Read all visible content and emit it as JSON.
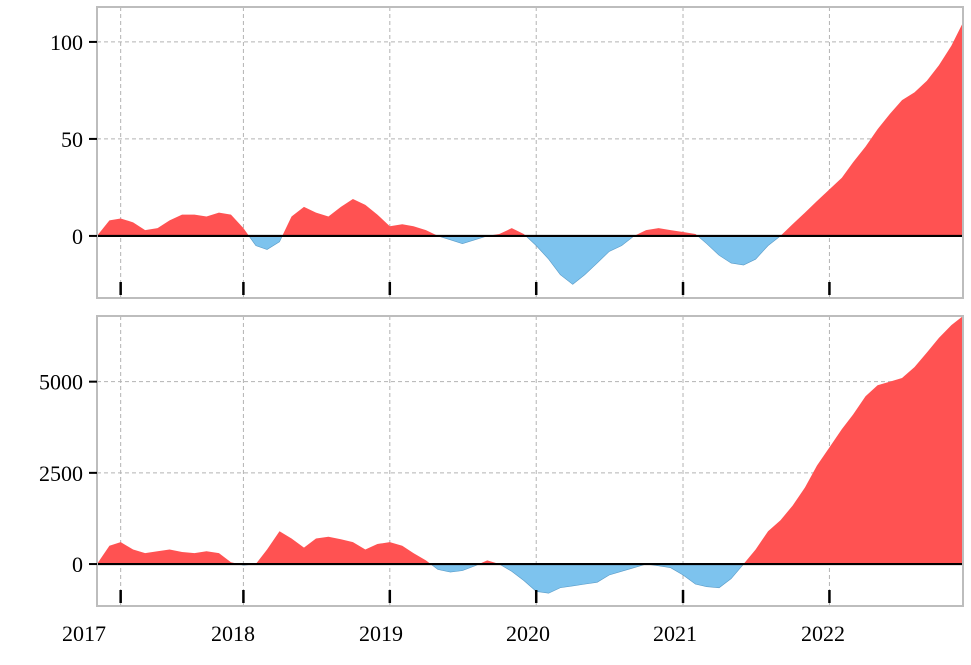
{
  "chart_data": [
    {
      "type": "area",
      "panel": "top",
      "title": "",
      "xlabel": "",
      "ylabel": "",
      "xlim": [
        "2017-01-01",
        "2022-11-30"
      ],
      "ylim": [
        -32,
        118
      ],
      "y_ticks": [
        0,
        50,
        100
      ],
      "y_tick_labels": [
        "0",
        "50",
        "100"
      ],
      "grid": true,
      "colors": {
        "positive": "#ff5252",
        "negative": "#7dc3ee",
        "zero_line": "#000000",
        "grid": "#b3b3b3",
        "frame": "#bdbdbd"
      },
      "x": [
        "2017-01-01",
        "2017-02-01",
        "2017-03-01",
        "2017-04-01",
        "2017-05-01",
        "2017-06-01",
        "2017-07-01",
        "2017-08-01",
        "2017-09-01",
        "2017-10-01",
        "2017-11-01",
        "2017-12-01",
        "2018-01-01",
        "2018-02-01",
        "2018-03-01",
        "2018-04-01",
        "2018-05-01",
        "2018-06-01",
        "2018-07-01",
        "2018-08-01",
        "2018-09-01",
        "2018-10-01",
        "2018-11-01",
        "2018-12-01",
        "2019-01-01",
        "2019-02-01",
        "2019-03-01",
        "2019-04-01",
        "2019-05-01",
        "2019-06-01",
        "2019-07-01",
        "2019-08-01",
        "2019-09-01",
        "2019-10-01",
        "2019-11-01",
        "2019-12-01",
        "2020-01-01",
        "2020-02-01",
        "2020-03-01",
        "2020-04-01",
        "2020-05-01",
        "2020-06-01",
        "2020-07-01",
        "2020-08-01",
        "2020-09-01",
        "2020-10-01",
        "2020-11-01",
        "2020-12-01",
        "2021-01-01",
        "2021-02-01",
        "2021-03-01",
        "2021-04-01",
        "2021-05-01",
        "2021-06-01",
        "2021-07-01",
        "2021-08-01",
        "2021-09-01",
        "2021-10-01",
        "2021-11-01",
        "2021-12-01",
        "2022-01-01",
        "2022-02-01",
        "2022-03-01",
        "2022-04-01",
        "2022-05-01",
        "2022-06-01",
        "2022-07-01",
        "2022-08-01",
        "2022-09-01",
        "2022-10-01",
        "2022-11-01",
        "2022-11-30"
      ],
      "values": [
        0,
        8,
        9,
        7,
        3,
        4,
        8,
        11,
        11,
        10,
        12,
        11,
        4,
        -5,
        -7,
        -3,
        10,
        15,
        12,
        10,
        15,
        19,
        16,
        11,
        5,
        6,
        5,
        3,
        0,
        -2,
        -4,
        -2,
        0,
        1,
        4,
        1,
        -5,
        -12,
        -20,
        -25,
        -20,
        -14,
        -8,
        -5,
        0,
        3,
        4,
        3,
        2,
        1,
        -4,
        -10,
        -14,
        -15,
        -12,
        -5,
        0,
        6,
        12,
        18,
        24,
        30,
        38,
        46,
        55,
        63,
        70,
        74,
        80,
        88,
        98,
        110
      ]
    },
    {
      "type": "area",
      "panel": "bottom",
      "title": "",
      "xlabel": "",
      "ylabel": "",
      "xlim": [
        "2017-01-01",
        "2022-11-30"
      ],
      "ylim": [
        -1150,
        6800
      ],
      "y_ticks": [
        0,
        2500,
        5000
      ],
      "y_tick_labels": [
        "0",
        "2500",
        "5000"
      ],
      "x_tick_labels": [
        "2017",
        "2018",
        "2019",
        "2020",
        "2021",
        "2022"
      ],
      "grid": true,
      "colors": {
        "positive": "#ff5252",
        "negative": "#7dc3ee",
        "zero_line": "#000000",
        "grid": "#b3b3b3",
        "frame": "#bdbdbd"
      },
      "x": [
        "2017-01-01",
        "2017-02-01",
        "2017-03-01",
        "2017-04-01",
        "2017-05-01",
        "2017-06-01",
        "2017-07-01",
        "2017-08-01",
        "2017-09-01",
        "2017-10-01",
        "2017-11-01",
        "2017-12-01",
        "2018-01-01",
        "2018-02-01",
        "2018-03-01",
        "2018-04-01",
        "2018-05-01",
        "2018-06-01",
        "2018-07-01",
        "2018-08-01",
        "2018-09-01",
        "2018-10-01",
        "2018-11-01",
        "2018-12-01",
        "2019-01-01",
        "2019-02-01",
        "2019-03-01",
        "2019-04-01",
        "2019-05-01",
        "2019-06-01",
        "2019-07-01",
        "2019-08-01",
        "2019-09-01",
        "2019-10-01",
        "2019-11-01",
        "2019-12-01",
        "2020-01-01",
        "2020-02-01",
        "2020-03-01",
        "2020-04-01",
        "2020-05-01",
        "2020-06-01",
        "2020-07-01",
        "2020-08-01",
        "2020-09-01",
        "2020-10-01",
        "2020-11-01",
        "2020-12-01",
        "2021-01-01",
        "2021-02-01",
        "2021-03-01",
        "2021-04-01",
        "2021-05-01",
        "2021-06-01",
        "2021-07-01",
        "2021-08-01",
        "2021-09-01",
        "2021-10-01",
        "2021-11-01",
        "2021-12-01",
        "2022-01-01",
        "2022-02-01",
        "2022-03-01",
        "2022-04-01",
        "2022-05-01",
        "2022-06-01",
        "2022-07-01",
        "2022-08-01",
        "2022-09-01",
        "2022-10-01",
        "2022-11-01",
        "2022-11-30"
      ],
      "values": [
        0,
        500,
        600,
        400,
        300,
        350,
        400,
        330,
        300,
        350,
        300,
        50,
        -30,
        0,
        400,
        900,
        700,
        450,
        700,
        750,
        680,
        600,
        400,
        550,
        600,
        500,
        300,
        100,
        -150,
        -220,
        -180,
        -50,
        100,
        0,
        -200,
        -450,
        -750,
        -800,
        -650,
        -600,
        -550,
        -500,
        -300,
        -200,
        -100,
        0,
        -50,
        -100,
        -300,
        -550,
        -620,
        -650,
        -400,
        0,
        400,
        900,
        1200,
        1600,
        2100,
        2700,
        3200,
        3700,
        4100,
        4600,
        4900,
        5000,
        5100,
        5400,
        5800,
        6200,
        6550,
        6800
      ]
    }
  ]
}
